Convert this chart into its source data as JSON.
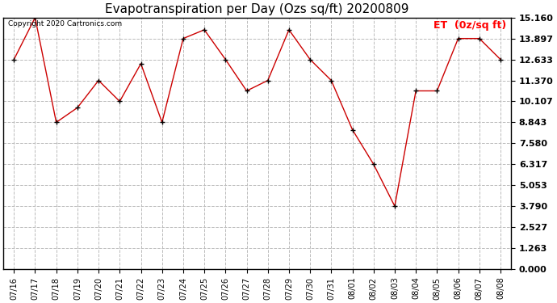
{
  "title": "Evapotranspiration per Day (Ozs sq/ft) 20200809",
  "legend_label": "ET  (0z/sq ft)",
  "copyright_text": "Copyright 2020 Cartronics.com",
  "x_labels": [
    "07/16",
    "07/17",
    "07/18",
    "07/19",
    "07/20",
    "07/21",
    "07/22",
    "07/23",
    "07/24",
    "07/25",
    "07/26",
    "07/27",
    "07/28",
    "07/29",
    "07/30",
    "07/31",
    "08/01",
    "08/02",
    "08/03",
    "08/04",
    "08/05",
    "08/06",
    "08/07",
    "08/08"
  ],
  "y_values": [
    12.633,
    15.16,
    8.843,
    9.727,
    11.37,
    10.107,
    12.38,
    8.843,
    13.897,
    14.423,
    12.633,
    10.74,
    11.37,
    14.423,
    12.633,
    11.37,
    8.4,
    6.317,
    3.79,
    10.74,
    10.74,
    13.897,
    13.897,
    12.633
  ],
  "line_color": "#cc0000",
  "marker": "+",
  "marker_color": "#000000",
  "background_color": "#ffffff",
  "grid_color": "#bbbbbb",
  "ylim": [
    0.0,
    15.16
  ],
  "yticks": [
    0.0,
    1.263,
    2.527,
    3.79,
    5.053,
    6.317,
    7.58,
    8.843,
    10.107,
    11.37,
    12.633,
    13.897,
    15.16
  ],
  "title_fontsize": 11,
  "legend_fontsize": 9,
  "copyright_fontsize": 6.5,
  "tick_fontsize": 7,
  "ytick_fontsize": 8
}
